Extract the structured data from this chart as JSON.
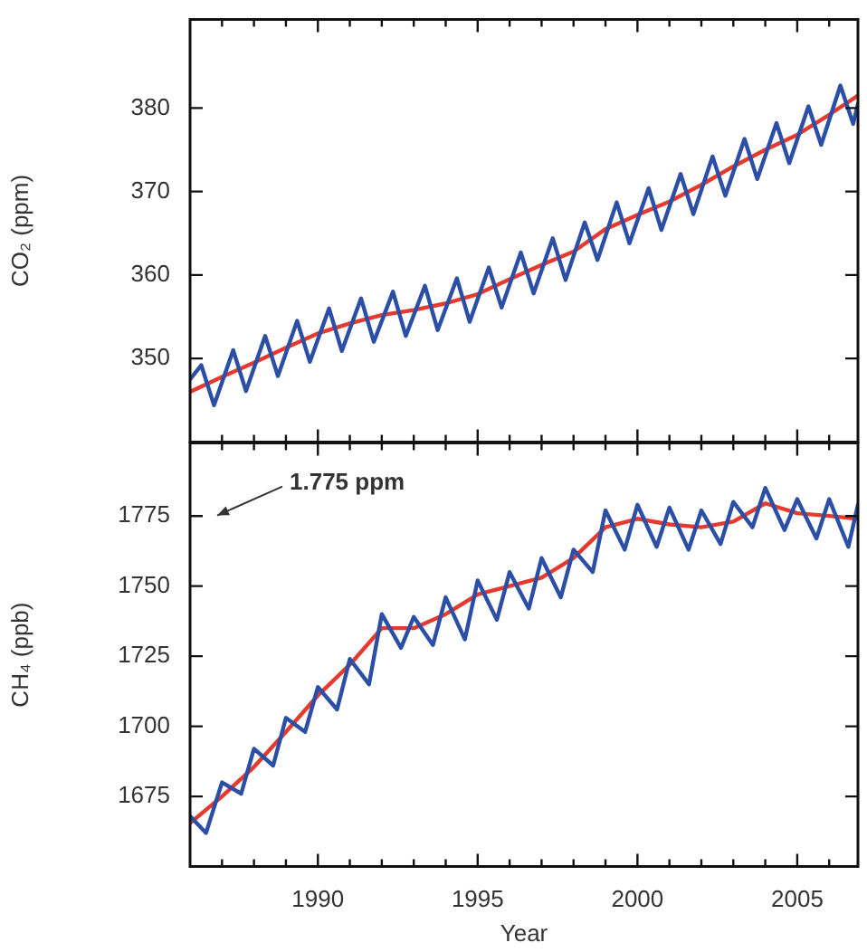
{
  "chart_data": [
    {
      "type": "line",
      "ylabel": "CO₂ (ppm)",
      "xlim": [
        1986,
        2006.9
      ],
      "ylim": [
        340,
        390.6
      ],
      "yticks": [
        350,
        360,
        370,
        380
      ],
      "tick_labels": "y",
      "marker": "none",
      "line_style": "solid",
      "xticks": [
        {
          "value": 1987,
          "label": null
        },
        {
          "value": 1988,
          "label": null
        },
        {
          "value": 1989,
          "label": null
        },
        1990,
        {
          "value": 1991,
          "label": null
        },
        {
          "value": 1992,
          "label": null
        },
        {
          "value": 1993,
          "label": null
        },
        {
          "value": 1994,
          "label": null
        },
        1995,
        {
          "value": 1996,
          "label": null
        },
        {
          "value": 1997,
          "label": null
        },
        {
          "value": 1998,
          "label": null
        },
        {
          "value": 1999,
          "label": null
        },
        2000,
        {
          "value": 2001,
          "label": null
        },
        {
          "value": 2002,
          "label": null
        },
        {
          "value": 2003,
          "label": null
        },
        {
          "value": 2004,
          "label": null
        },
        2005,
        {
          "value": 2006,
          "label": null
        }
      ],
      "series": [
        {
          "color": "#2b4ea6",
          "x": [
            1986.0,
            1986.35,
            1986.75,
            1987.35,
            1987.75,
            1988.35,
            1988.75,
            1989.35,
            1989.75,
            1990.35,
            1990.75,
            1991.35,
            1991.75,
            1992.35,
            1992.75,
            1993.35,
            1993.75,
            1994.35,
            1994.75,
            1995.35,
            1995.75,
            1996.35,
            1996.75,
            1997.35,
            1997.75,
            1998.35,
            1998.75,
            1999.35,
            1999.75,
            2000.35,
            2000.75,
            2001.35,
            2001.75,
            2002.35,
            2002.75,
            2003.35,
            2003.75,
            2004.35,
            2004.75,
            2005.35,
            2005.75,
            2006.35,
            2006.75,
            2006.9
          ],
          "values": [
            347.5,
            349.2,
            344.4,
            351.0,
            346.1,
            352.7,
            347.9,
            354.5,
            349.6,
            356.0,
            350.9,
            357.2,
            352.0,
            358.0,
            352.7,
            358.7,
            353.4,
            359.6,
            354.4,
            360.9,
            356.1,
            362.7,
            357.8,
            364.4,
            359.4,
            366.3,
            361.8,
            368.7,
            363.8,
            370.4,
            365.4,
            372.1,
            367.3,
            374.2,
            369.5,
            376.3,
            371.5,
            378.2,
            373.4,
            380.2,
            375.6,
            382.7,
            378.1,
            380.5
          ]
        },
        {
          "color": "#e53b2f",
          "x": [
            1986,
            1987,
            1988,
            1989,
            1990,
            1991,
            1992,
            1993,
            1994,
            1995,
            1996,
            1997,
            1998,
            1999,
            2000,
            2001,
            2002,
            2003,
            2004,
            2005,
            2006,
            2006.9
          ],
          "values": [
            346.0,
            347.8,
            349.5,
            351.3,
            353.0,
            354.2,
            355.2,
            355.8,
            356.6,
            357.7,
            359.5,
            361.2,
            362.8,
            365.5,
            367.2,
            368.8,
            370.8,
            373.0,
            375.0,
            376.8,
            379.2,
            381.5
          ]
        }
      ]
    },
    {
      "type": "line",
      "xlabel": "Year",
      "ylabel": "CH₄ (ppb)",
      "xlim": [
        1986,
        2006.9
      ],
      "ylim": [
        1650,
        1801
      ],
      "yticks": [
        1675,
        1700,
        1725,
        1750,
        1775
      ],
      "marker": "none",
      "line_style": "solid",
      "xticks": [
        {
          "value": 1987,
          "label": null
        },
        {
          "value": 1988,
          "label": null
        },
        {
          "value": 1989,
          "label": null
        },
        1990,
        {
          "value": 1991,
          "label": null
        },
        {
          "value": 1992,
          "label": null
        },
        {
          "value": 1993,
          "label": null
        },
        {
          "value": 1994,
          "label": null
        },
        1995,
        {
          "value": 1996,
          "label": null
        },
        {
          "value": 1997,
          "label": null
        },
        {
          "value": 1998,
          "label": null
        },
        {
          "value": 1999,
          "label": null
        },
        2000,
        {
          "value": 2001,
          "label": null
        },
        {
          "value": 2002,
          "label": null
        },
        {
          "value": 2003,
          "label": null
        },
        {
          "value": 2004,
          "label": null
        },
        2005,
        {
          "value": 2006,
          "label": null
        }
      ],
      "annotations": [
        "1.775 ppm"
      ],
      "series": [
        {
          "color": "#2b4ea6",
          "x": [
            1986.0,
            1986.5,
            1987.0,
            1987.6,
            1988.0,
            1988.6,
            1989.0,
            1989.6,
            1990.0,
            1990.6,
            1991.0,
            1991.6,
            1992.0,
            1992.6,
            1993.0,
            1993.6,
            1994.0,
            1994.6,
            1995.0,
            1995.6,
            1996.0,
            1996.6,
            1997.0,
            1997.6,
            1998.0,
            1998.6,
            1999.0,
            1999.6,
            2000.0,
            2000.6,
            2001.0,
            2001.6,
            2002.0,
            2002.6,
            2003.0,
            2003.6,
            2004.0,
            2004.6,
            2005.0,
            2005.6,
            2006.0,
            2006.6,
            2006.9
          ],
          "values": [
            1668,
            1662,
            1680,
            1676,
            1692,
            1686,
            1703,
            1698,
            1714,
            1706,
            1724,
            1715,
            1740,
            1728,
            1739,
            1729,
            1746,
            1731,
            1752,
            1738,
            1755,
            1742,
            1760,
            1746,
            1763,
            1755,
            1777,
            1763,
            1779,
            1764,
            1778,
            1763,
            1777,
            1765,
            1780,
            1771,
            1785,
            1770,
            1781,
            1767,
            1781,
            1764,
            1779
          ]
        },
        {
          "color": "#e53b2f",
          "x": [
            1986,
            1987,
            1988,
            1989,
            1990,
            1991,
            1992,
            1993,
            1994,
            1995,
            1996,
            1997,
            1998,
            1999,
            2000,
            2001,
            2002,
            2003,
            2004,
            2005,
            2006,
            2006.9
          ],
          "values": [
            1665.5,
            1675,
            1685.5,
            1698,
            1711,
            1722,
            1735,
            1735,
            1740,
            1747,
            1750,
            1753,
            1760,
            1771,
            1774,
            1772,
            1771,
            1773,
            1779.5,
            1776,
            1775,
            1774
          ]
        }
      ]
    }
  ]
}
